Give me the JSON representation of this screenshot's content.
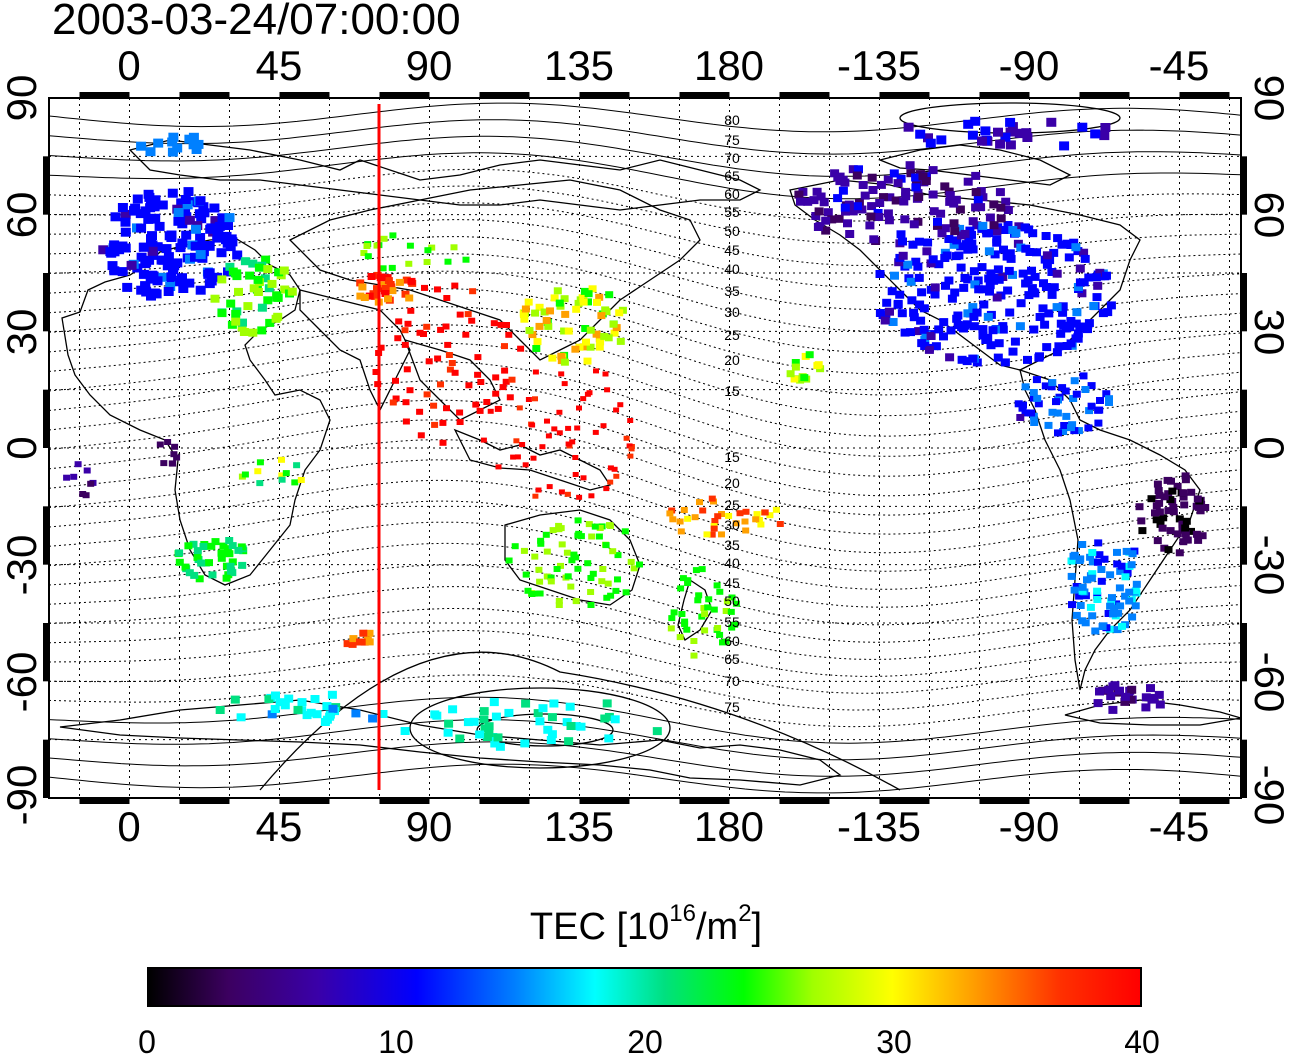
{
  "title": "2003-03-24/07:00:00",
  "axes": {
    "top_ticks": [
      "0",
      "45",
      "90",
      "135",
      "180",
      "-135",
      "-90",
      "-45"
    ],
    "bottom_ticks": [
      "0",
      "45",
      "90",
      "135",
      "180",
      "-135",
      "-90",
      "-45"
    ],
    "left_ticks": [
      "90",
      "60",
      "30",
      "0",
      "-30",
      "-60",
      "-90"
    ],
    "right_ticks": [
      "90",
      "60",
      "30",
      "0",
      "-30",
      "-60",
      "-90"
    ],
    "longitude_range": [
      -25,
      335
    ],
    "latitude_range": [
      -90,
      90
    ]
  },
  "colorbar": {
    "title_main": "TEC  [10",
    "title_exp": "16",
    "title_unit": "/m",
    "title_sq": "2",
    "title_close": "]",
    "ticks": [
      "0",
      "10",
      "20",
      "30",
      "40"
    ],
    "range": [
      0,
      40
    ],
    "palette": [
      "#000000",
      "#3c0060",
      "#3a00a8",
      "#0000ff",
      "#0080ff",
      "#00ffff",
      "#00e080",
      "#00ff00",
      "#a0ff00",
      "#ffff00",
      "#ffa000",
      "#ff3000",
      "#ff0000"
    ]
  },
  "terminator_meridian_lon": 75,
  "terminator_color": "#ff0000",
  "contour_labels": {
    "north": [
      "80",
      "75",
      "70",
      "65",
      "60",
      "55",
      "50",
      "45",
      "40",
      "35",
      "30",
      "25",
      "20",
      "15"
    ],
    "south": [
      "15",
      "20",
      "25",
      "30",
      "35",
      "40",
      "45",
      "50",
      "55",
      "60",
      "65",
      "70",
      "75"
    ]
  }
}
